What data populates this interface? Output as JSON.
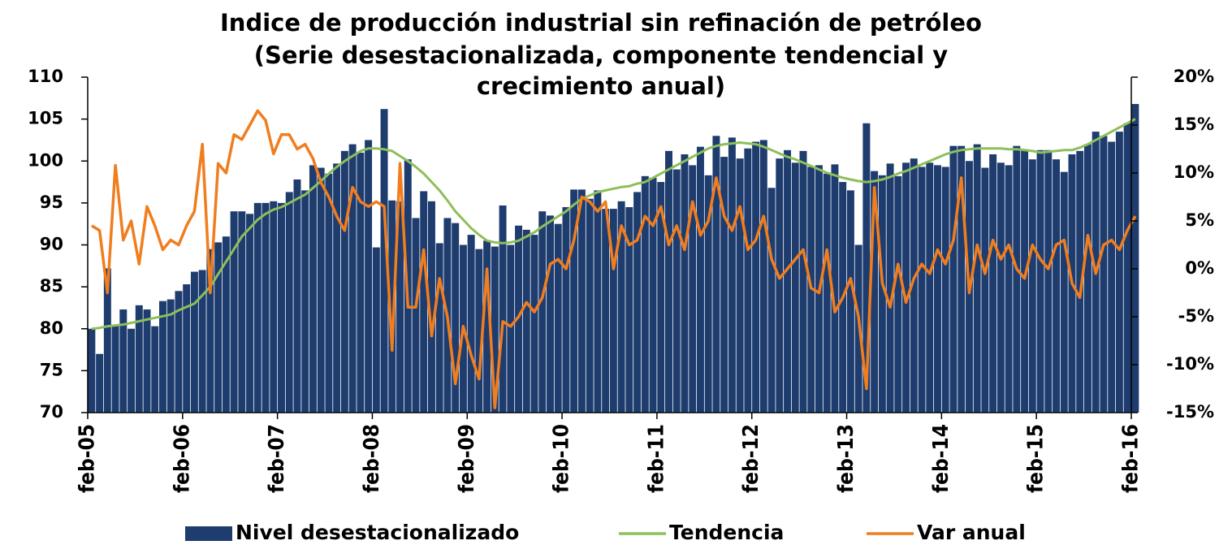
{
  "chart_data": {
    "type": "bar-line",
    "title": [
      "Indice de producción industrial sin refinación de petróleo",
      "(Serie desestacionalizada, componente tendencial y",
      "crecimiento anual)"
    ],
    "categories": [
      "feb-05",
      null,
      null,
      null,
      null,
      null,
      null,
      null,
      null,
      null,
      null,
      null,
      "feb-06",
      null,
      null,
      null,
      null,
      null,
      null,
      null,
      null,
      null,
      null,
      null,
      "feb-07",
      null,
      null,
      null,
      null,
      null,
      null,
      null,
      null,
      null,
      null,
      null,
      "feb-08",
      null,
      null,
      null,
      null,
      null,
      null,
      null,
      null,
      null,
      null,
      null,
      "feb-09",
      null,
      null,
      null,
      null,
      null,
      null,
      null,
      null,
      null,
      null,
      null,
      "feb-10",
      null,
      null,
      null,
      null,
      null,
      null,
      null,
      null,
      null,
      null,
      null,
      "feb-11",
      null,
      null,
      null,
      null,
      null,
      null,
      null,
      null,
      null,
      null,
      null,
      "feb-12",
      null,
      null,
      null,
      null,
      null,
      null,
      null,
      null,
      null,
      null,
      null,
      "feb-13",
      null,
      null,
      null,
      null,
      null,
      null,
      null,
      null,
      null,
      null,
      null,
      "feb-14",
      null,
      null,
      null,
      null,
      null,
      null,
      null,
      null,
      null,
      null,
      null,
      "feb-15",
      null,
      null,
      null,
      null,
      null,
      null,
      null,
      null,
      null,
      null,
      null,
      "feb-16"
    ],
    "series": [
      {
        "name": "Nivel desestacionalizado",
        "type": "bar",
        "color": "#1e3c6e",
        "values": [
          80,
          77,
          87.2,
          80.5,
          82.3,
          80,
          82.8,
          82.3,
          80.3,
          83.3,
          83.5,
          84.5,
          85.3,
          86.8,
          87,
          89.5,
          90.3,
          91,
          94,
          94,
          93.7,
          95,
          95,
          95.2,
          95,
          96.3,
          97.8,
          96.5,
          99.5,
          99.2,
          98.5,
          99.7,
          101.2,
          102,
          101,
          102.5,
          89.7,
          106.2,
          95.3,
          95.2,
          100.2,
          93.2,
          96.4,
          95.2,
          90.2,
          93.2,
          92.6,
          90,
          91.2,
          89.5,
          90.5,
          89.8,
          94.7,
          90,
          92.3,
          91.8,
          91.2,
          94,
          93.5,
          92.5,
          94.5,
          96.6,
          96.6,
          95.5,
          96.5,
          94.3,
          94.3,
          95.2,
          94.5,
          96.3,
          98.2,
          98,
          97.5,
          101.2,
          99,
          100.8,
          99.5,
          101.7,
          98.3,
          103,
          100.5,
          102.8,
          100.3,
          101.5,
          102.3,
          102.5,
          96.8,
          100.3,
          101.3,
          99.8,
          101.2,
          99.3,
          99.5,
          98.5,
          99.6,
          97.5,
          96.5,
          90,
          104.5,
          98.8,
          98.3,
          99.7,
          98.2,
          99.8,
          100.3,
          99.3,
          99.8,
          99.5,
          99.3,
          101.8,
          101.8,
          100,
          102,
          99.2,
          100.8,
          99.8,
          99.5,
          101.8,
          101.3,
          100.2,
          101.3,
          101.3,
          100.2,
          98.7,
          100.8,
          101.2,
          102,
          103.5,
          103,
          102.3,
          103.5,
          104.5,
          106.8
        ]
      },
      {
        "name": "Tendencia",
        "type": "line",
        "color": "#8dbf5a",
        "values": [
          80,
          80.1,
          80.3,
          80.4,
          80.5,
          80.7,
          80.9,
          81.1,
          81.3,
          81.5,
          81.7,
          82.2,
          82.6,
          83,
          84,
          85,
          86.5,
          88,
          89.5,
          91,
          92,
          93,
          93.7,
          94.2,
          94.5,
          95,
          95.5,
          96,
          96.8,
          97.6,
          98.5,
          99.3,
          100,
          100.6,
          101.2,
          101.5,
          101.5,
          101.4,
          101.2,
          100.6,
          100,
          99.3,
          98.5,
          97.5,
          96.5,
          95.3,
          94,
          93,
          92,
          91.2,
          90.5,
          90.3,
          90.2,
          90.3,
          90.5,
          91,
          91.5,
          92.2,
          92.8,
          93.4,
          94,
          94.8,
          95.5,
          95.9,
          96.3,
          96.5,
          96.7,
          96.9,
          97,
          97.3,
          97.5,
          98,
          98.5,
          99,
          99.5,
          100,
          100.5,
          101,
          101.5,
          101.8,
          102,
          102.1,
          102.2,
          102.1,
          102,
          101.7,
          101.3,
          100.9,
          100.5,
          100.2,
          99.8,
          99.4,
          99,
          98.6,
          98.3,
          98,
          97.8,
          97.6,
          97.5,
          97.6,
          97.8,
          98.1,
          98.5,
          98.8,
          99.2,
          99.6,
          100,
          100.4,
          100.8,
          101.1,
          101.3,
          101.4,
          101.5,
          101.5,
          101.5,
          101.5,
          101.4,
          101.4,
          101.3,
          101.2,
          101,
          101.1,
          101.2,
          101.3,
          101.3,
          101.6,
          102,
          102.5,
          103,
          103.5,
          104,
          104.5,
          105
        ]
      },
      {
        "name": "Var anual",
        "type": "line",
        "axis": "y2",
        "color": "#f07d1e",
        "values": [
          4.5,
          4,
          -2.5,
          10.8,
          3,
          5,
          0.5,
          6.5,
          4.5,
          2,
          3,
          2.5,
          4.5,
          6,
          13,
          -2.5,
          11,
          10,
          14,
          13.5,
          15,
          16.5,
          15.5,
          12,
          14,
          14,
          12.5,
          13,
          11.5,
          9,
          7.5,
          5.5,
          4,
          8.5,
          7,
          6.5,
          7,
          6.5,
          -8.5,
          11,
          -4,
          -4,
          2,
          -7,
          -1,
          -5,
          -12,
          -6,
          -9,
          -11.5,
          0,
          -14.5,
          -5.5,
          -6,
          -5,
          -3.5,
          -4.5,
          -3,
          0.5,
          1,
          0,
          3,
          7.5,
          7,
          6,
          7,
          0,
          4.5,
          2.5,
          3,
          5.5,
          4.5,
          6.5,
          2.5,
          4.5,
          2,
          7,
          3.5,
          5,
          9.5,
          5.5,
          4,
          6.5,
          2,
          3,
          5.5,
          1,
          -1,
          0,
          1,
          2,
          -2,
          -2.5,
          2,
          -4.5,
          -3,
          -1,
          -5,
          -12.5,
          8.5,
          -1.5,
          -4,
          0.5,
          -3.5,
          -1,
          0.5,
          -0.5,
          2,
          0.5,
          3,
          9.5,
          -2.5,
          2.5,
          -0.5,
          3,
          1,
          2.5,
          0,
          -1,
          2.5,
          1,
          0,
          2.5,
          3,
          -1.5,
          -3,
          3.5,
          -0.5,
          2.5,
          3,
          2,
          4,
          5.5
        ]
      }
    ],
    "ylim": [
      70,
      110
    ],
    "yticks": [
      70,
      75,
      80,
      85,
      90,
      95,
      100,
      105,
      110
    ],
    "y2lim": [
      -15,
      20
    ],
    "y2ticks": [
      {
        "value": -15,
        "label": "-15%"
      },
      {
        "value": -10,
        "label": "-10%"
      },
      {
        "value": -5,
        "label": "-5%"
      },
      {
        "value": 0,
        "label": "0%"
      },
      {
        "value": 5,
        "label": "5%"
      },
      {
        "value": 10,
        "label": "10%"
      },
      {
        "value": 15,
        "label": "15%"
      },
      {
        "value": 20,
        "label": "20%"
      }
    ],
    "grid": false,
    "legend": "bottom"
  }
}
